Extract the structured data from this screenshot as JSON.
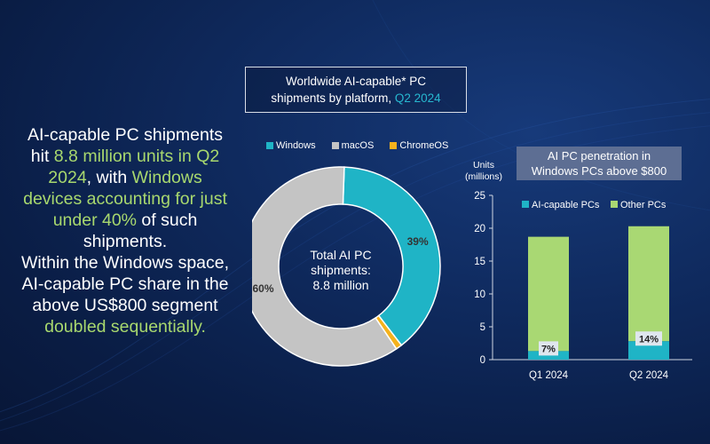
{
  "headline": {
    "line1": "AI-capable PC shipments",
    "line2_pre": "hit ",
    "line2_hl": "8.8 million units in Q2",
    "line3_hl": "2024",
    "line3_post": ", with ",
    "line3_hl2": "Windows",
    "line4_hl": "devices accounting for just",
    "line5_hl": "under 40%",
    "line5_post": " of such",
    "line6": "shipments.",
    "line7": "Within the Windows space,",
    "line8": "AI-capable PC share in the",
    "line9": "above US$800 segment",
    "line10_hl": "doubled sequentially."
  },
  "colors": {
    "windows": "#1fb4c6",
    "macos": "#c4c4c4",
    "chromeos": "#f5b21d",
    "ai_capable": "#1fb4c6",
    "other": "#a9d873",
    "accent_green": "#a8d86e"
  },
  "chart_data": [
    {
      "type": "pie",
      "title_pre": "Worldwide AI-capable* PC",
      "title_line2": "shipments by platform,",
      "title_accent": "Q2 2024",
      "center_label_1": "Total AI PC",
      "center_label_2": "shipments:",
      "center_label_3": "8.8 million",
      "legend": [
        "Windows",
        "macOS",
        "ChromeOS"
      ],
      "slices": [
        {
          "name": "Windows",
          "value": 39,
          "label": "39%"
        },
        {
          "name": "ChromeOS",
          "value": 1,
          "label": ""
        },
        {
          "name": "macOS",
          "value": 60,
          "label": "60%"
        }
      ]
    },
    {
      "type": "bar",
      "title_line1": "AI PC penetration in",
      "title_line2": "Windows PCs above $800",
      "ylabel_1": "Units",
      "ylabel_2": "(millions)",
      "ylim": [
        0,
        25
      ],
      "yticks": [
        "0",
        "5",
        "10",
        "15",
        "20",
        "25"
      ],
      "categories": [
        "Q1 2024",
        "Q2 2024"
      ],
      "legend": [
        "AI-capable PCs",
        "Other PCs"
      ],
      "series": [
        {
          "name": "AI-capable PCs",
          "values": [
            1.3,
            2.8
          ],
          "labels": [
            "7%",
            "14%"
          ]
        },
        {
          "name": "Other PCs",
          "values": [
            17.4,
            17.5
          ]
        }
      ]
    }
  ]
}
